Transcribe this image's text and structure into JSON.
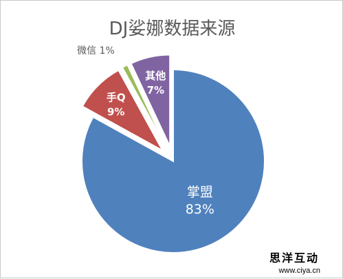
{
  "chart_data": {
    "type": "pie",
    "title": "DJ娑娜数据来源",
    "slices": [
      {
        "name": "掌盟",
        "value": 83,
        "label": "83%",
        "color": "#4f81bd",
        "exploded": false,
        "label_pos": "inside",
        "label_color": "#ffffff"
      },
      {
        "name": "手Q",
        "value": 9,
        "label": "9%",
        "color": "#c0504d",
        "exploded": true,
        "label_pos": "inside",
        "label_color": "#ffffff"
      },
      {
        "name": "微信",
        "value": 1,
        "label": "1%",
        "color": "#9bbb59",
        "exploded": true,
        "label_pos": "outside",
        "label_color": "#595959"
      },
      {
        "name": "其他",
        "value": 7,
        "label": "7%",
        "color": "#8064a2",
        "exploded": true,
        "label_pos": "inside",
        "label_color": "#ffffff"
      }
    ]
  },
  "watermark": {
    "name": "思洋互动",
    "url": "www.ciya.cn"
  }
}
